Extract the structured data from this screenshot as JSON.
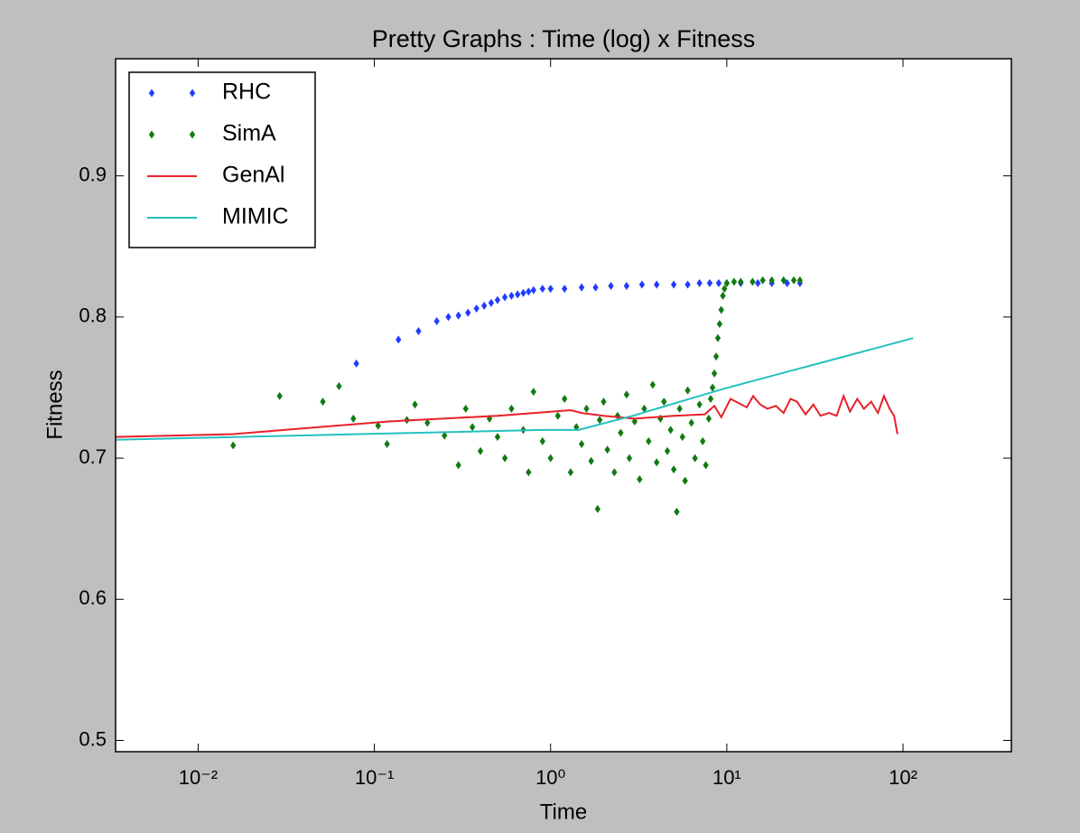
{
  "chart_data": {
    "type": "scatter",
    "title": "Pretty Graphs : Time (log) x Fitness",
    "x_label": "Time",
    "y_label": "Fitness",
    "xscale": "log",
    "xlim": [
      0.0034,
      412
    ],
    "ylim": [
      0.492,
      0.983
    ],
    "xticks": [
      {
        "value": 0.01,
        "label": "10⁻²"
      },
      {
        "value": 0.1,
        "label": "10⁻¹"
      },
      {
        "value": 1,
        "label": "10⁰"
      },
      {
        "value": 10,
        "label": "10¹"
      },
      {
        "value": 100,
        "label": "10²"
      }
    ],
    "yticks": [
      0.5,
      0.6,
      0.7,
      0.8,
      0.9
    ],
    "legend": "upper left",
    "series": [
      {
        "name": "RHC",
        "type": "scatter",
        "color": "#1f3cff",
        "x": [
          0.079,
          0.137,
          0.178,
          0.226,
          0.263,
          0.3,
          0.34,
          0.38,
          0.42,
          0.46,
          0.5,
          0.55,
          0.6,
          0.65,
          0.7,
          0.75,
          0.8,
          0.9,
          1.0,
          1.2,
          1.5,
          1.8,
          2.2,
          2.7,
          3.3,
          4,
          5,
          6,
          7,
          8,
          9,
          10,
          12,
          15,
          18,
          22,
          26
        ],
        "values": [
          0.767,
          0.784,
          0.79,
          0.797,
          0.8,
          0.801,
          0.803,
          0.806,
          0.808,
          0.81,
          0.812,
          0.814,
          0.815,
          0.816,
          0.817,
          0.818,
          0.819,
          0.82,
          0.82,
          0.82,
          0.821,
          0.821,
          0.822,
          0.822,
          0.823,
          0.823,
          0.823,
          0.823,
          0.824,
          0.824,
          0.824,
          0.824,
          0.824,
          0.824,
          0.824,
          0.824,
          0.824
        ]
      },
      {
        "name": "SimA",
        "type": "scatter",
        "color": "#117a11",
        "x": [
          0.0158,
          0.029,
          0.051,
          0.063,
          0.076,
          0.105,
          0.118,
          0.153,
          0.17,
          0.2,
          0.25,
          0.3,
          0.33,
          0.36,
          0.4,
          0.45,
          0.5,
          0.55,
          0.6,
          0.7,
          0.75,
          0.8,
          0.9,
          1.0,
          1.1,
          1.2,
          1.3,
          1.4,
          1.5,
          1.6,
          1.7,
          1.85,
          1.9,
          2.0,
          2.1,
          2.3,
          2.4,
          2.5,
          2.7,
          2.8,
          3.0,
          3.2,
          3.4,
          3.6,
          3.8,
          4.0,
          4.2,
          4.4,
          4.6,
          4.8,
          5.0,
          5.2,
          5.4,
          5.6,
          5.8,
          6.0,
          6.3,
          6.6,
          7.0,
          7.3,
          7.6,
          7.9,
          8.1,
          8.3,
          8.5,
          8.7,
          8.9,
          9.1,
          9.3,
          9.5,
          9.7,
          10,
          11,
          12,
          14,
          16,
          18,
          21,
          24,
          26
        ],
        "values": [
          0.709,
          0.744,
          0.74,
          0.751,
          0.728,
          0.723,
          0.71,
          0.727,
          0.738,
          0.725,
          0.716,
          0.695,
          0.735,
          0.722,
          0.705,
          0.728,
          0.715,
          0.7,
          0.735,
          0.72,
          0.69,
          0.747,
          0.712,
          0.7,
          0.73,
          0.742,
          0.69,
          0.722,
          0.71,
          0.735,
          0.698,
          0.664,
          0.727,
          0.74,
          0.706,
          0.69,
          0.73,
          0.718,
          0.745,
          0.7,
          0.726,
          0.685,
          0.735,
          0.712,
          0.752,
          0.697,
          0.728,
          0.74,
          0.705,
          0.72,
          0.692,
          0.662,
          0.735,
          0.715,
          0.684,
          0.748,
          0.725,
          0.7,
          0.738,
          0.712,
          0.695,
          0.728,
          0.742,
          0.75,
          0.76,
          0.772,
          0.785,
          0.795,
          0.805,
          0.815,
          0.82,
          0.824,
          0.825,
          0.825,
          0.825,
          0.826,
          0.826,
          0.826,
          0.826,
          0.826
        ]
      },
      {
        "name": "GenAl",
        "type": "line",
        "color": "#e8202a",
        "x": [
          0.0034,
          0.0158,
          0.12,
          0.5,
          1.3,
          1.5,
          2.0,
          3.0,
          5.0,
          7.5,
          8.5,
          9.3,
          10.5,
          12.1,
          13,
          14.1,
          15.5,
          17,
          19,
          21,
          23,
          25,
          28,
          31,
          34,
          38,
          42,
          46,
          50,
          55,
          60,
          66,
          72,
          78,
          84,
          89,
          93
        ],
        "values": [
          0.715,
          0.717,
          0.726,
          0.73,
          0.734,
          0.732,
          0.73,
          0.728,
          0.73,
          0.731,
          0.737,
          0.729,
          0.742,
          0.738,
          0.736,
          0.744,
          0.738,
          0.735,
          0.737,
          0.732,
          0.742,
          0.74,
          0.731,
          0.738,
          0.73,
          0.732,
          0.73,
          0.744,
          0.733,
          0.742,
          0.735,
          0.74,
          0.732,
          0.744,
          0.735,
          0.73,
          0.717
        ]
      },
      {
        "name": "MIMIC",
        "type": "line",
        "color": "#25c0c0",
        "x": [
          0.0034,
          0.9,
          1.44,
          2.93,
          9.5,
          114
        ],
        "values": [
          0.713,
          0.72,
          0.72,
          0.73,
          0.749,
          0.785
        ]
      }
    ]
  }
}
